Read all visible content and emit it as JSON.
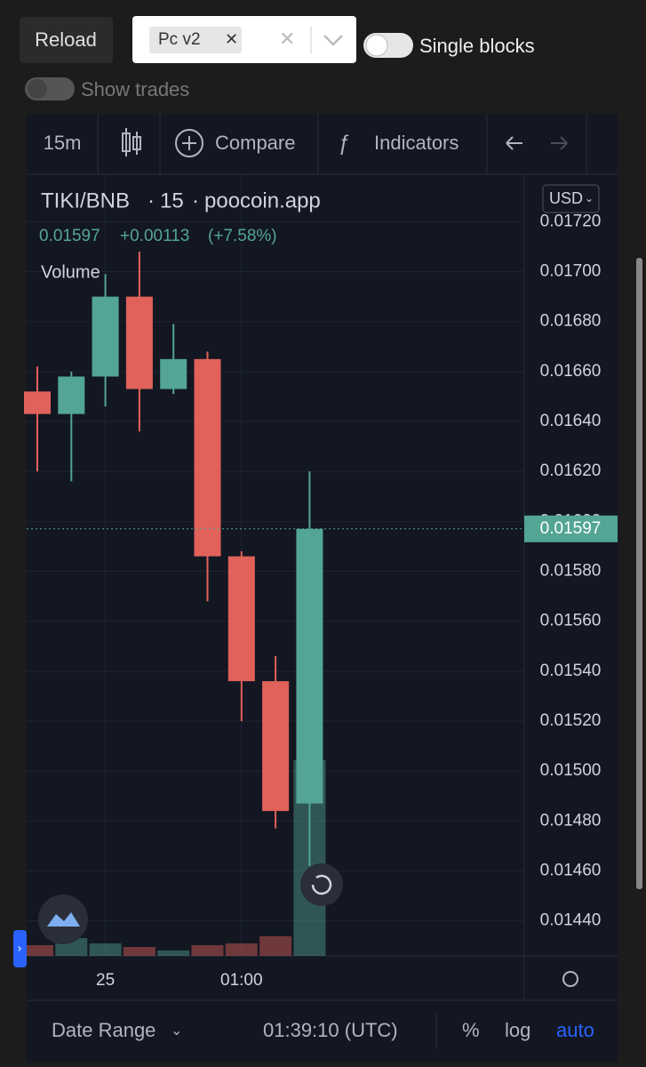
{
  "controls": {
    "reload": "Reload",
    "pair_select": "Pc v2",
    "single_blocks": "Single blocks",
    "show_trades": "Show trades"
  },
  "toolbar": {
    "interval": "15m",
    "compare": "Compare",
    "indicators": "Indicators"
  },
  "legend": {
    "symbol": "TIKI/BNB",
    "interval": "15",
    "source": "poocoin.app",
    "change": "+0.00113",
    "change_pct": "(+7.58%)",
    "volume": "Volume"
  },
  "currency": "USD",
  "footer": {
    "date_range": "Date Range",
    "time": "01:39:10 (UTC)",
    "percent": "%",
    "log": "log",
    "auto": "auto"
  },
  "chart_data": {
    "type": "candlestick",
    "categories": [
      null,
      null,
      "25",
      null,
      null,
      null,
      "01:00",
      null,
      null
    ],
    "open": [
      0.01652,
      0.01643,
      0.01658,
      0.0169,
      0.01653,
      0.01665,
      0.01586,
      0.01536,
      0.01487
    ],
    "high": [
      0.01662,
      0.0166,
      0.01699,
      0.01708,
      0.01679,
      0.01668,
      0.01588,
      0.01546,
      0.0162
    ],
    "low": [
      0.0162,
      0.01616,
      0.01646,
      0.01636,
      0.01651,
      0.01568,
      0.0152,
      0.01477,
      0.01462
    ],
    "close": [
      0.01643,
      0.01658,
      0.0169,
      0.01653,
      0.01665,
      0.01586,
      0.01536,
      0.01484,
      0.01597
    ],
    "volume": [
      12,
      20,
      14,
      10,
      6,
      12,
      14,
      22,
      220
    ],
    "up_color": "#53a595",
    "down_color": "#e0625a",
    "ylim": [
      0.01426,
      0.01739
    ],
    "yticks": [
      {
        "value": 0.0144,
        "label": "0.01440"
      },
      {
        "value": 0.0146,
        "label": "0.01460"
      },
      {
        "value": 0.0148,
        "label": "0.01480"
      },
      {
        "value": 0.015,
        "label": "0.01500"
      },
      {
        "value": 0.0152,
        "label": "0.01520"
      },
      {
        "value": 0.0154,
        "label": "0.01540"
      },
      {
        "value": 0.0156,
        "label": "0.01560"
      },
      {
        "value": 0.0158,
        "label": "0.01580"
      },
      {
        "value": 0.016,
        "label": "0.01600"
      },
      {
        "value": 0.0162,
        "label": "0.01620"
      },
      {
        "value": 0.0164,
        "label": "0.01640"
      },
      {
        "value": 0.0166,
        "label": "0.01660"
      },
      {
        "value": 0.0168,
        "label": "0.01680"
      },
      {
        "value": 0.017,
        "label": "0.01700"
      },
      {
        "value": 0.0172,
        "label": "0.01720"
      }
    ],
    "last_price": 0.01597,
    "grid": true
  }
}
